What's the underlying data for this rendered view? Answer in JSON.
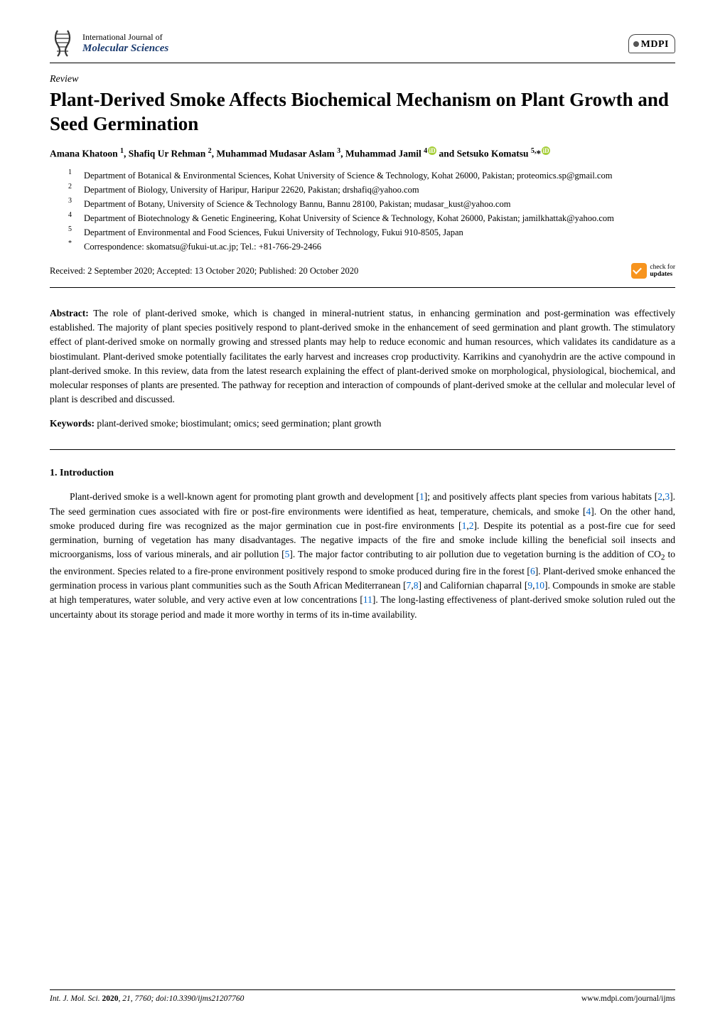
{
  "journal": {
    "superline": "International Journal of",
    "name": "Molecular Sciences",
    "publisher": "MDPI",
    "logo_color": "#3b3b3b"
  },
  "article": {
    "type": "Review",
    "title": "Plant-Derived Smoke Affects Biochemical Mechanism on Plant Growth and Seed Germination"
  },
  "authors_html": "Amana Khatoon <sup>1</sup>, Shafiq Ur Rehman <sup>2</sup>, Muhammad Mudasar Aslam <sup>3</sup>, Muhammad Jamil <sup>4</sup><span class=\"orcid\" data-name=\"orcid-icon\" data-interactable=\"false\">iD</span> and Setsuko Komatsu <sup>5,</sup>*<span class=\"orcid\" data-name=\"orcid-icon\" data-interactable=\"false\">iD</span>",
  "affiliations": [
    {
      "num": "1",
      "text": "Department of Botanical & Environmental Sciences, Kohat University of Science & Technology, Kohat 26000, Pakistan; proteomics.sp@gmail.com"
    },
    {
      "num": "2",
      "text": "Department of Biology, University of Haripur, Haripur 22620, Pakistan; drshafiq@yahoo.com"
    },
    {
      "num": "3",
      "text": "Department of Botany, University of Science & Technology Bannu, Bannu 28100, Pakistan; mudasar_kust@yahoo.com"
    },
    {
      "num": "4",
      "text": "Department of Biotechnology & Genetic Engineering, Kohat University of Science & Technology, Kohat 26000, Pakistan; jamilkhattak@yahoo.com"
    },
    {
      "num": "5",
      "text": "Department of Environmental and Food Sciences, Fukui University of Technology, Fukui 910-8505, Japan"
    },
    {
      "num": "*",
      "text": "Correspondence: skomatsu@fukui-ut.ac.jp; Tel.: +81-766-29-2466"
    }
  ],
  "dates": "Received: 2 September 2020; Accepted: 13 October 2020; Published: 20 October 2020",
  "check_updates": {
    "line1": "check for",
    "line2": "updates"
  },
  "abstract": {
    "label": "Abstract:",
    "text": "The role of plant-derived smoke, which is changed in mineral-nutrient status, in enhancing germination and post-germination was effectively established. The majority of plant species positively respond to plant-derived smoke in the enhancement of seed germination and plant growth. The stimulatory effect of plant-derived smoke on normally growing and stressed plants may help to reduce economic and human resources, which validates its candidature as a biostimulant. Plant-derived smoke potentially facilitates the early harvest and increases crop productivity. Karrikins and cyanohydrin are the active compound in plant-derived smoke. In this review, data from the latest research explaining the effect of plant-derived smoke on morphological, physiological, biochemical, and molecular responses of plants are presented. The pathway for reception and interaction of compounds of plant-derived smoke at the cellular and molecular level of plant is described and discussed."
  },
  "keywords": {
    "label": "Keywords:",
    "text": "plant-derived smoke; biostimulant; omics; seed germination; plant growth"
  },
  "section1": {
    "heading": "1. Introduction",
    "para_html": "Plant-derived smoke is a well-known agent for promoting plant growth and development [<span class=\"cite\">1</span>]; and positively affects plant species from various habitats [<span class=\"cite\">2</span>,<span class=\"cite\">3</span>]. The seed germination cues associated with fire or post-fire environments were identified as heat, temperature, chemicals, and smoke [<span class=\"cite\">4</span>]. On the other hand, smoke produced during fire was recognized as the major germination cue in post-fire environments [<span class=\"cite\">1</span>,<span class=\"cite\">2</span>]. Despite its potential as a post-fire cue for seed germination, burning of vegetation has many disadvantages. The negative impacts of the fire and smoke include killing the beneficial soil insects and microorganisms, loss of various minerals, and air pollution [<span class=\"cite\">5</span>]. The major factor contributing to air pollution due to vegetation burning is the addition of CO<sub>2</sub> to the environment. Species related to a fire-prone environment positively respond to smoke produced during fire in the forest [<span class=\"cite\">6</span>]. Plant-derived smoke enhanced the germination process in various plant communities such as the South African Mediterranean [<span class=\"cite\">7</span>,<span class=\"cite\">8</span>] and Californian chaparral [<span class=\"cite\">9</span>,<span class=\"cite\">10</span>]. Compounds in smoke are stable at high temperatures, water soluble, and very active even at low concentrations [<span class=\"cite\">11</span>]. The long-lasting effectiveness of plant-derived smoke solution ruled out the uncertainty about its storage period and made it more worthy in terms of its in-time availability."
  },
  "footer": {
    "left_html": "<span class=\"footer-left\"><i>Int. J. Mol. Sci.</i> <b class=\"vol\">2020</b>, <i>21</i>, 7760; doi:10.3390/ijms21207760</span>",
    "right": "www.mdpi.com/journal/ijms"
  },
  "colors": {
    "link": "#0066cc",
    "orcid": "#a6ce39",
    "check_badge": "#f7941e",
    "journal_name": "#1a3a6e"
  }
}
